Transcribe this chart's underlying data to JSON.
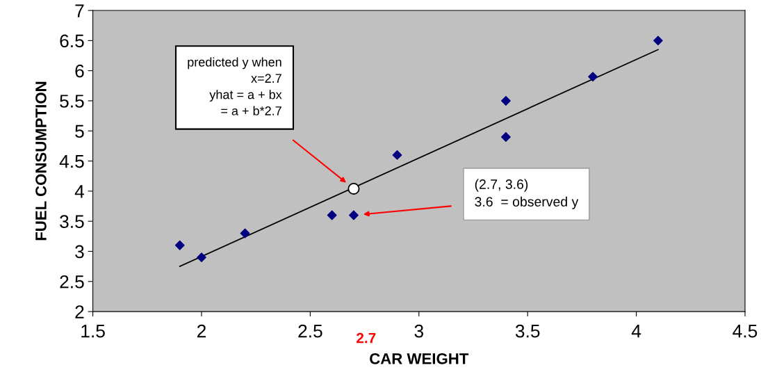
{
  "chart_data": {
    "type": "scatter",
    "xlabel": "CAR WEIGHT",
    "ylabel": "FUEL CONSUMPTION",
    "xlim": [
      1.5,
      4.5
    ],
    "ylim": [
      2,
      7
    ],
    "xticks": [
      1.5,
      2,
      2.5,
      3,
      3.5,
      4,
      4.5
    ],
    "yticks": [
      2,
      2.5,
      3,
      3.5,
      4,
      4.5,
      5,
      5.5,
      6,
      6.5,
      7
    ],
    "grid": false,
    "series": [
      {
        "color": "#000080",
        "marker": "diamond",
        "x": [
          1.9,
          2.0,
          2.2,
          2.6,
          2.7,
          2.9,
          3.4,
          3.4,
          3.8,
          4.1
        ],
        "values": [
          3.1,
          2.9,
          3.3,
          3.6,
          3.6,
          4.6,
          5.5,
          4.9,
          5.9,
          6.5
        ]
      },
      {
        "type": "line",
        "color": "#000000",
        "line_style": "solid",
        "marker": "none",
        "x": [
          1.9,
          4.1
        ],
        "values": [
          2.75,
          6.35
        ]
      },
      {
        "type": "scatter",
        "color": "#ffffff",
        "marker": "circle",
        "x": [
          2.7
        ],
        "values": [
          4.04
        ]
      }
    ],
    "annotations": [
      "predicted y when\nx=2.7\nyhat = a + bx\n= a + b*2.7",
      "(2.7, 3.6)\n3.6  = observed y",
      "2.7"
    ]
  }
}
